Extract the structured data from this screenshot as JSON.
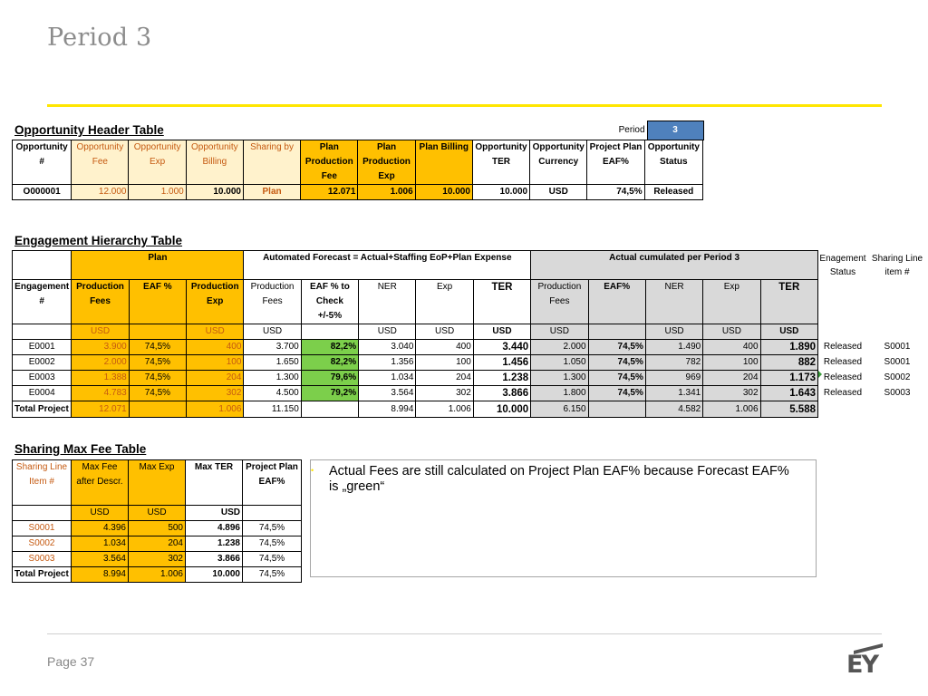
{
  "page_title": "Period 3",
  "page_number": "Page 37",
  "logo_text": "EY",
  "opportunity": {
    "title": "Opportunity Header Table",
    "period_label": "Period",
    "period_value": "3",
    "headers": [
      "Opportunity #",
      "Opportunity Fee",
      "Opportunity Exp",
      "Opportunity Billing",
      "Sharing by",
      "Plan Production Fee",
      "Plan Production Exp",
      "Plan Billing",
      "Opportunity TER",
      "Opportunity Currency",
      "Project Plan EAF%",
      "Opportunity Status"
    ],
    "row": [
      "O000001",
      "12.000",
      "1.000",
      "10.000",
      "Plan",
      "12.071",
      "1.006",
      "10.000",
      "10.000",
      "USD",
      "74,5%",
      "Released"
    ]
  },
  "engagement": {
    "title": "Engagement Hierarchy Table",
    "group_plan": "Plan",
    "group_forecast": "Automated Forecast = Actual+Staffing EoP+Plan Expense",
    "group_actual": "Actual cumulated per Period 3",
    "status_header": "Enagement Status",
    "sharing_header": "Sharing Line item #",
    "headers": [
      "Engagement #",
      "Production Fees",
      "EAF %",
      "Production Exp",
      "Production Fees",
      "EAF % to Check +/-5%",
      "NER",
      "Exp",
      "TER",
      "Production Fees",
      "EAF%",
      "NER",
      "Exp",
      "TER"
    ],
    "units": [
      "",
      "USD",
      "",
      "USD",
      "USD",
      "",
      "USD",
      "USD",
      "USD",
      "USD",
      "",
      "USD",
      "USD",
      "USD"
    ],
    "rows": [
      {
        "cells": [
          "E0001",
          "3.900",
          "74,5%",
          "400",
          "3.700",
          "82,2%",
          "3.040",
          "400",
          "3.440",
          "2.000",
          "74,5%",
          "1.490",
          "400",
          "1.890"
        ],
        "status": "Released",
        "sharing": "S0001"
      },
      {
        "cells": [
          "E0002",
          "2.000",
          "74,5%",
          "100",
          "1.650",
          "82,2%",
          "1.356",
          "100",
          "1.456",
          "1.050",
          "74,5%",
          "782",
          "100",
          "882"
        ],
        "status": "Released",
        "sharing": "S0001"
      },
      {
        "cells": [
          "E0003",
          "1.388",
          "74,5%",
          "204",
          "1.300",
          "79,6%",
          "1.034",
          "204",
          "1.238",
          "1.300",
          "74,5%",
          "969",
          "204",
          "1.173"
        ],
        "status": "Released",
        "sharing": "S0002"
      },
      {
        "cells": [
          "E0004",
          "4.783",
          "74,5%",
          "302",
          "4.500",
          "79,2%",
          "3.564",
          "302",
          "3.866",
          "1.800",
          "74,5%",
          "1.341",
          "302",
          "1.643"
        ],
        "status": "Released",
        "sharing": "S0003"
      }
    ],
    "total": [
      "Total Project",
      "12.071",
      "",
      "1.006",
      "11.150",
      "",
      "8.994",
      "1.006",
      "10.000",
      "6.150",
      "",
      "4.582",
      "1.006",
      "5.588"
    ]
  },
  "sharing": {
    "title": "Sharing Max Fee Table",
    "headers": [
      "Sharing Line Item #",
      "Max Fee after Descr.",
      "Max Exp",
      "Max TER",
      "Project Plan EAF%"
    ],
    "units": [
      "",
      "USD",
      "USD",
      "USD",
      ""
    ],
    "rows": [
      [
        "S0001",
        "4.396",
        "500",
        "4.896",
        "74,5%"
      ],
      [
        "S0002",
        "1.034",
        "204",
        "1.238",
        "74,5%"
      ],
      [
        "S0003",
        "3.564",
        "302",
        "3.866",
        "74,5%"
      ]
    ],
    "total": [
      "Total Project",
      "8.994",
      "1.006",
      "10.000",
      "74,5%"
    ]
  },
  "note": {
    "bullet": "•",
    "text": "Actual Fees are still calculated on Project Plan EAF% because Forecast EAF% is „green“"
  }
}
